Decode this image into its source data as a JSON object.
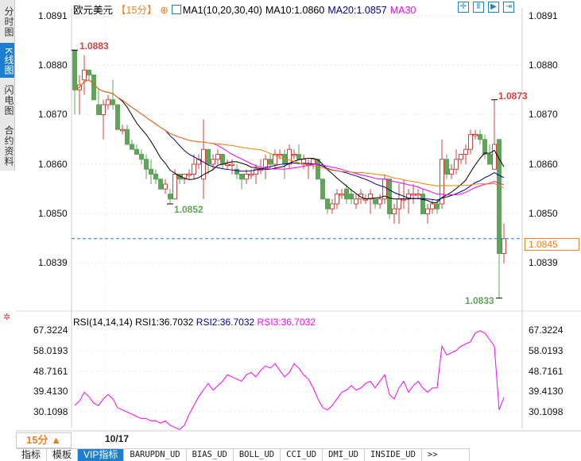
{
  "side_tabs": [
    {
      "label": "分时图",
      "active": false
    },
    {
      "label": "K线图",
      "active": true
    },
    {
      "label": "闪电图",
      "active": false
    },
    {
      "label": "合约资料",
      "active": false
    }
  ],
  "header": {
    "symbol": "欧元美元",
    "period": "【15分】",
    "ma_label": "MA1(10,20,30,40)",
    "ma10": "MA10:1.0860",
    "ma20": "MA20:1.0857",
    "ma30": "MA30"
  },
  "toolbar": [
    "crosshair-icon",
    "range-icon",
    "step-left-icon",
    "step-right-icon"
  ],
  "price_axis": {
    "ticks": [
      "1.0891",
      "1.0880",
      "1.0870",
      "1.0860",
      "1.0850",
      "1.0839"
    ],
    "current_price": "1.0845"
  },
  "annotations": {
    "high1": "1.0883",
    "low1": "1.0852",
    "high2": "1.0873",
    "low2": "1.0833"
  },
  "rsi": {
    "title": "RSI(14,14,14)",
    "rsi1": "RSI1:36.7032",
    "rsi2": "RSI2:36.7032",
    "rsi3": "RSI3:36.7032",
    "ticks": [
      "67.3224",
      "58.0193",
      "48.7161",
      "39.4130",
      "30.1098"
    ],
    "values": [
      33,
      35,
      39,
      37,
      34,
      33,
      36,
      38,
      36,
      32,
      31,
      30,
      29,
      28,
      27,
      27,
      26,
      26,
      25,
      26,
      24,
      23,
      22,
      24,
      29,
      33,
      37,
      40,
      43,
      40,
      42,
      44,
      47,
      46,
      45,
      44,
      47,
      48,
      46,
      49,
      51,
      50,
      52,
      49,
      46,
      48,
      52,
      50,
      47,
      45,
      41,
      36,
      32,
      31,
      33,
      36,
      39,
      40,
      42,
      40,
      41,
      43,
      44,
      41,
      44,
      47,
      38,
      36,
      41,
      44,
      39,
      42,
      44,
      41,
      39,
      41,
      41,
      60,
      56,
      57,
      58,
      60,
      61,
      62,
      66,
      67,
      66,
      63,
      60,
      31,
      36.7
    ]
  },
  "colors": {
    "up": "#d9413b",
    "down": "#5ea55a",
    "ma10": "#000000",
    "ma20": "#000090",
    "ma30": "#ff00ff",
    "ma40": "#f08000",
    "rsi": "#ff00ff",
    "accent": "#1c7fd0"
  },
  "bottom": {
    "period": "15分 ▲",
    "date": "10/17"
  },
  "tabs": [
    {
      "label": "指标"
    },
    {
      "label": "模板"
    },
    {
      "label": "VIP指标",
      "active": true
    },
    {
      "label": "BARUPDN_UD"
    },
    {
      "label": "BIAS_UD"
    },
    {
      "label": "BOLL_UD"
    },
    {
      "label": "CCI_UD"
    },
    {
      "label": "DMI_UD"
    },
    {
      "label": "INSIDE_UD"
    },
    {
      "label": ">>"
    }
  ],
  "chart_data": {
    "type": "candlestick",
    "y_ticks": [
      1.0891,
      1.088,
      1.087,
      1.086,
      1.085,
      1.0839
    ],
    "ohlc": [
      [
        1.0883,
        1.0883,
        1.087,
        1.0875
      ],
      [
        1.0875,
        1.0878,
        1.087,
        1.0876
      ],
      [
        1.0877,
        1.0882,
        1.0874,
        1.0879
      ],
      [
        1.0879,
        1.0879,
        1.0877,
        1.0878
      ],
      [
        1.0878,
        1.0878,
        1.0873,
        1.0873
      ],
      [
        1.0872,
        1.0875,
        1.087,
        1.087
      ],
      [
        1.087,
        1.0873,
        1.0865,
        1.0872
      ],
      [
        1.0872,
        1.0874,
        1.0871,
        1.0873
      ],
      [
        1.0873,
        1.0877,
        1.0871,
        1.0872
      ],
      [
        1.0872,
        1.0872,
        1.0867,
        1.0867
      ],
      [
        1.0867,
        1.0868,
        1.0866,
        1.0867
      ],
      [
        1.0867,
        1.0868,
        1.0864,
        1.0864
      ],
      [
        1.0864,
        1.0865,
        1.0863,
        1.0863
      ],
      [
        1.0863,
        1.0864,
        1.0862,
        1.0862
      ],
      [
        1.0862,
        1.0863,
        1.086,
        1.0861
      ],
      [
        1.0861,
        1.0862,
        1.0857,
        1.0859
      ],
      [
        1.0859,
        1.0861,
        1.0856,
        1.0858
      ],
      [
        1.0858,
        1.0859,
        1.0856,
        1.0857
      ],
      [
        1.0857,
        1.0857,
        1.0855,
        1.0855
      ],
      [
        1.0855,
        1.0857,
        1.0854,
        1.0856
      ],
      [
        1.0854,
        1.0855,
        1.0852,
        1.0853
      ],
      [
        1.0853,
        1.0859,
        1.0853,
        1.0858
      ],
      [
        1.0858,
        1.0858,
        1.0856,
        1.0857
      ],
      [
        1.0857,
        1.0858,
        1.0856,
        1.0858
      ],
      [
        1.0858,
        1.0859,
        1.0857,
        1.0858
      ],
      [
        1.0858,
        1.0862,
        1.0857,
        1.086
      ],
      [
        1.086,
        1.0862,
        1.0859,
        1.0861
      ],
      [
        1.0857,
        1.0869,
        1.0853,
        1.0863
      ],
      [
        1.0863,
        1.0863,
        1.0858,
        1.086
      ],
      [
        1.086,
        1.0862,
        1.0859,
        1.0861
      ],
      [
        1.0861,
        1.0863,
        1.086,
        1.0862
      ],
      [
        1.0862,
        1.0862,
        1.0859,
        1.086
      ],
      [
        1.086,
        1.0861,
        1.0859,
        1.086
      ],
      [
        1.086,
        1.0861,
        1.0858,
        1.086
      ],
      [
        1.0859,
        1.086,
        1.0857,
        1.0858
      ],
      [
        1.0858,
        1.0858,
        1.0855,
        1.0857
      ],
      [
        1.0857,
        1.0859,
        1.0856,
        1.0858
      ],
      [
        1.0858,
        1.0859,
        1.0857,
        1.0858
      ],
      [
        1.0858,
        1.086,
        1.0856,
        1.0859
      ],
      [
        1.0859,
        1.0861,
        1.0858,
        1.0859
      ],
      [
        1.0859,
        1.0862,
        1.0857,
        1.0861
      ],
      [
        1.0861,
        1.0862,
        1.0859,
        1.086
      ],
      [
        1.086,
        1.0863,
        1.0859,
        1.0862
      ],
      [
        1.0862,
        1.0863,
        1.0861,
        1.0862
      ],
      [
        1.0862,
        1.0863,
        1.0857,
        1.086
      ],
      [
        1.086,
        1.0864,
        1.0859,
        1.0863
      ],
      [
        1.0862,
        1.0863,
        1.0861,
        1.0862
      ],
      [
        1.0862,
        1.0864,
        1.0861,
        1.0861
      ],
      [
        1.086,
        1.0862,
        1.0859,
        1.0861
      ],
      [
        1.086,
        1.0861,
        1.0857,
        1.086
      ],
      [
        1.086,
        1.0861,
        1.0859,
        1.0861
      ],
      [
        1.0861,
        1.0861,
        1.0857,
        1.0857
      ],
      [
        1.0857,
        1.0857,
        1.0853,
        1.0853
      ],
      [
        1.0853,
        1.0853,
        1.085,
        1.0851
      ],
      [
        1.0851,
        1.0853,
        1.085,
        1.0852
      ],
      [
        1.0852,
        1.0855,
        1.0851,
        1.0854
      ],
      [
        1.0854,
        1.0855,
        1.0853,
        1.0854
      ],
      [
        1.0855,
        1.0856,
        1.0852,
        1.0853
      ],
      [
        1.0854,
        1.0855,
        1.0852,
        1.0853
      ],
      [
        1.0852,
        1.0854,
        1.0851,
        1.0853
      ],
      [
        1.0853,
        1.0855,
        1.0852,
        1.0854
      ],
      [
        1.0853,
        1.0854,
        1.0852,
        1.0853
      ],
      [
        1.0853,
        1.0855,
        1.085,
        1.0854
      ],
      [
        1.0853,
        1.0853,
        1.0851,
        1.0852
      ],
      [
        1.0852,
        1.0854,
        1.0851,
        1.0853
      ],
      [
        1.0853,
        1.0858,
        1.0852,
        1.0857
      ],
      [
        1.0857,
        1.0857,
        1.0849,
        1.085
      ],
      [
        1.085,
        1.0852,
        1.0848,
        1.0851
      ],
      [
        1.0851,
        1.0856,
        1.0848,
        1.0853
      ],
      [
        1.0853,
        1.0857,
        1.0851,
        1.0853
      ],
      [
        1.0853,
        1.0855,
        1.085,
        1.0854
      ],
      [
        1.0854,
        1.0856,
        1.0852,
        1.0854
      ],
      [
        1.0854,
        1.0855,
        1.0853,
        1.0854
      ],
      [
        1.0854,
        1.0855,
        1.085,
        1.085
      ],
      [
        1.085,
        1.0852,
        1.0848,
        1.0851
      ],
      [
        1.0851,
        1.0853,
        1.085,
        1.0852
      ],
      [
        1.0852,
        1.0853,
        1.085,
        1.0851
      ],
      [
        1.0852,
        1.0865,
        1.0851,
        1.0861
      ],
      [
        1.0861,
        1.0862,
        1.0857,
        1.0858
      ],
      [
        1.0858,
        1.086,
        1.0857,
        1.0859
      ],
      [
        1.0859,
        1.0863,
        1.0858,
        1.0861
      ],
      [
        1.0861,
        1.0862,
        1.086,
        1.0862
      ],
      [
        1.0862,
        1.0864,
        1.086,
        1.0863
      ],
      [
        1.0863,
        1.0867,
        1.0862,
        1.0866
      ],
      [
        1.0866,
        1.0867,
        1.0865,
        1.0866
      ],
      [
        1.0866,
        1.0867,
        1.0864,
        1.0865
      ],
      [
        1.0865,
        1.0866,
        1.0861,
        1.0862
      ],
      [
        1.0862,
        1.0864,
        1.086,
        1.086
      ],
      [
        1.0859,
        1.0873,
        1.0859,
        1.0864
      ],
      [
        1.0865,
        1.0865,
        1.0833,
        1.0842
      ],
      [
        1.0842,
        1.0848,
        1.084,
        1.0845
      ]
    ]
  }
}
